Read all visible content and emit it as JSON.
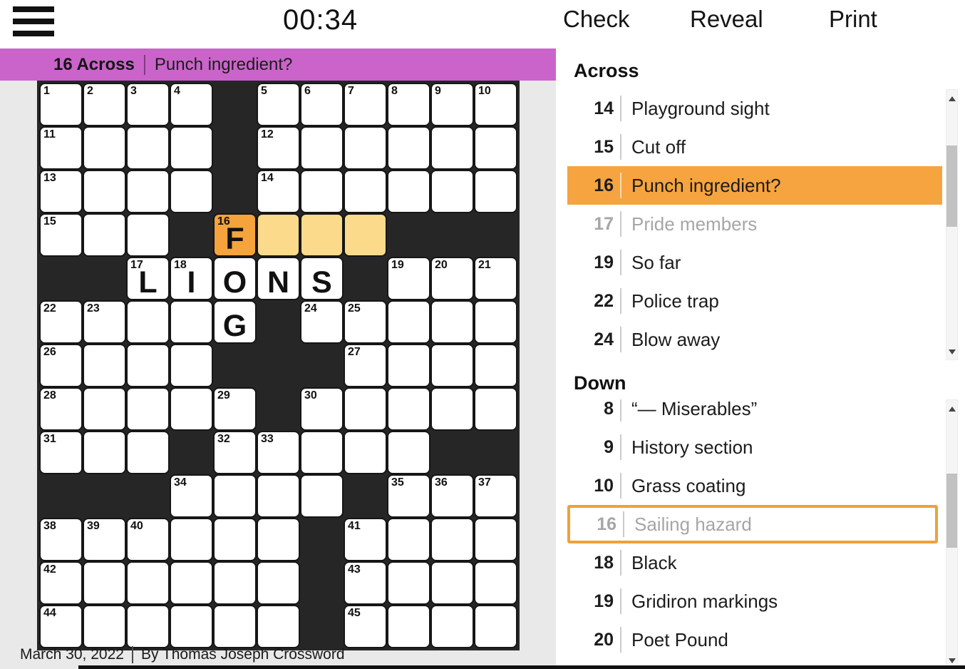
{
  "toolbar": {
    "timer": "00:34",
    "check_label": "Check",
    "reveal_label": "Reveal",
    "print_label": "Print"
  },
  "banner": {
    "clue_ref": "16 Across",
    "clue_text": "Punch ingredient?"
  },
  "footer": {
    "date": "March 30, 2022",
    "byline": "By Thomas Joseph Crossword"
  },
  "colors": {
    "banner_bg": "#CA64CA",
    "panel_bg": "#E9E9E9",
    "black_cell": "#262626",
    "selected_cell": "#F5A33C",
    "word_highlight": "#FBDB8B",
    "clue_highlight": "#F5A43F",
    "crossing_border": "#EFA139",
    "answered_text": "#A6A6A6"
  },
  "grid": {
    "rows": 13,
    "cols": 11,
    "cells": [
      [
        {
          "n": "1"
        },
        {
          "n": "2"
        },
        {
          "n": "3"
        },
        {
          "n": "4"
        },
        {
          "b": 1
        },
        {
          "n": "5"
        },
        {
          "n": "6"
        },
        {
          "n": "7"
        },
        {
          "n": "8"
        },
        {
          "n": "9"
        },
        {
          "n": "10"
        }
      ],
      [
        {
          "n": "11"
        },
        {},
        {},
        {},
        {
          "b": 1
        },
        {
          "n": "12"
        },
        {},
        {},
        {},
        {},
        {}
      ],
      [
        {
          "n": "13"
        },
        {},
        {},
        {},
        {
          "b": 1
        },
        {
          "n": "14"
        },
        {},
        {},
        {},
        {},
        {}
      ],
      [
        {
          "n": "15"
        },
        {},
        {},
        {
          "b": 1
        },
        {
          "n": "16",
          "l": "F",
          "hl": "cell"
        },
        {
          "hl": "word"
        },
        {
          "hl": "word"
        },
        {
          "hl": "word"
        },
        {
          "b": 1
        },
        {
          "b": 1
        },
        {
          "b": 1
        }
      ],
      [
        {
          "b": 1
        },
        {
          "b": 1
        },
        {
          "n": "17",
          "l": "L"
        },
        {
          "n": "18",
          "l": "I"
        },
        {
          "l": "O"
        },
        {
          "l": "N"
        },
        {
          "l": "S"
        },
        {
          "b": 1
        },
        {
          "n": "19"
        },
        {
          "n": "20"
        },
        {
          "n": "21"
        }
      ],
      [
        {
          "n": "22"
        },
        {
          "n": "23"
        },
        {},
        {},
        {
          "l": "G"
        },
        {
          "b": 1
        },
        {
          "n": "24"
        },
        {
          "n": "25"
        },
        {},
        {},
        {}
      ],
      [
        {
          "n": "26"
        },
        {},
        {},
        {},
        {
          "b": 1
        },
        {
          "b": 1
        },
        {
          "b": 1
        },
        {
          "n": "27"
        },
        {},
        {},
        {}
      ],
      [
        {
          "n": "28"
        },
        {},
        {},
        {},
        {
          "n": "29"
        },
        {
          "b": 1
        },
        {
          "n": "30"
        },
        {},
        {},
        {},
        {}
      ],
      [
        {
          "n": "31"
        },
        {},
        {},
        {
          "b": 1
        },
        {
          "n": "32"
        },
        {
          "n": "33"
        },
        {},
        {},
        {},
        {
          "b": 1
        },
        {
          "b": 1
        }
      ],
      [
        {
          "b": 1
        },
        {
          "b": 1
        },
        {
          "b": 1
        },
        {
          "n": "34"
        },
        {},
        {},
        {},
        {
          "b": 1
        },
        {
          "n": "35"
        },
        {
          "n": "36"
        },
        {
          "n": "37"
        }
      ],
      [
        {
          "n": "38"
        },
        {
          "n": "39"
        },
        {
          "n": "40"
        },
        {},
        {},
        {},
        {
          "b": 1
        },
        {
          "n": "41"
        },
        {},
        {},
        {}
      ],
      [
        {
          "n": "42"
        },
        {},
        {},
        {},
        {},
        {},
        {
          "b": 1
        },
        {
          "n": "43"
        },
        {},
        {},
        {}
      ],
      [
        {
          "n": "44"
        },
        {},
        {},
        {},
        {},
        {},
        {
          "b": 1
        },
        {
          "n": "45"
        },
        {},
        {},
        {}
      ]
    ]
  },
  "across": {
    "header": "Across",
    "clues": [
      {
        "num": "14",
        "text": "Playground sight",
        "state": "normal"
      },
      {
        "num": "15",
        "text": "Cut off",
        "state": "normal"
      },
      {
        "num": "16",
        "text": "Punch ingredient?",
        "state": "selected"
      },
      {
        "num": "17",
        "text": "Pride members",
        "state": "answered"
      },
      {
        "num": "19",
        "text": "So far",
        "state": "normal"
      },
      {
        "num": "22",
        "text": "Police trap",
        "state": "normal"
      },
      {
        "num": "24",
        "text": "Blow away",
        "state": "normal"
      }
    ]
  },
  "down": {
    "header": "Down",
    "clues": [
      {
        "num": "8",
        "text": "“— Miserables”",
        "state": "normal"
      },
      {
        "num": "9",
        "text": "History section",
        "state": "normal"
      },
      {
        "num": "10",
        "text": "Grass coating",
        "state": "normal"
      },
      {
        "num": "16",
        "text": "Sailing hazard",
        "state": "crossing"
      },
      {
        "num": "18",
        "text": "Black",
        "state": "normal"
      },
      {
        "num": "19",
        "text": "Gridiron markings",
        "state": "normal"
      },
      {
        "num": "20",
        "text": "Poet Pound",
        "state": "normal"
      },
      {
        "num": "",
        "text": "",
        "state": "partial"
      }
    ]
  }
}
